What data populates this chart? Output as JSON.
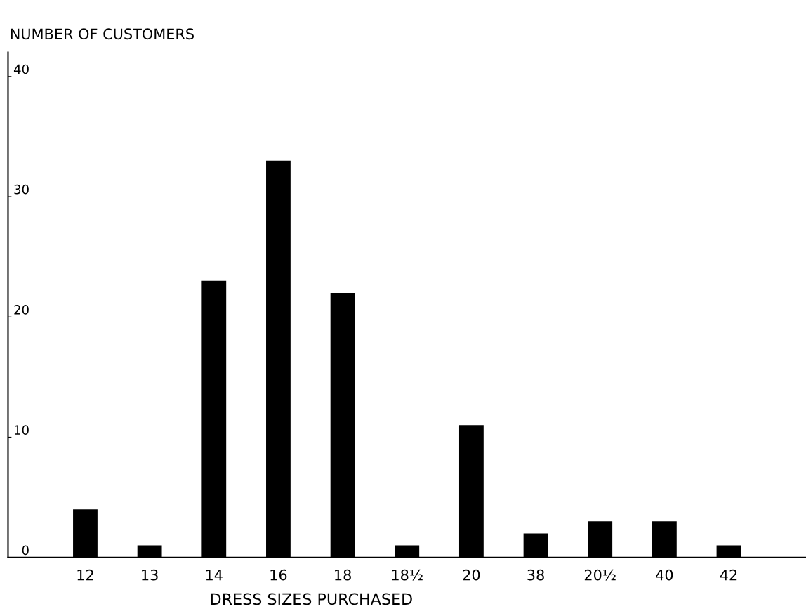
{
  "chart_data": {
    "type": "bar",
    "xlabel": "DRESS SIZES PURCHASED",
    "ylabel": "NUMBER OF CUSTOMERS",
    "categories": [
      "12",
      "13",
      "14",
      "16",
      "18",
      "18½",
      "20",
      "38",
      "20½",
      "40",
      "42"
    ],
    "values": [
      4,
      1,
      23,
      33,
      22,
      1,
      11,
      2,
      3,
      3,
      1
    ],
    "color": "#000000",
    "ylim": [
      0,
      42
    ],
    "yticks": [
      0,
      10,
      20,
      30,
      40
    ],
    "grid": false,
    "legend": false
  }
}
